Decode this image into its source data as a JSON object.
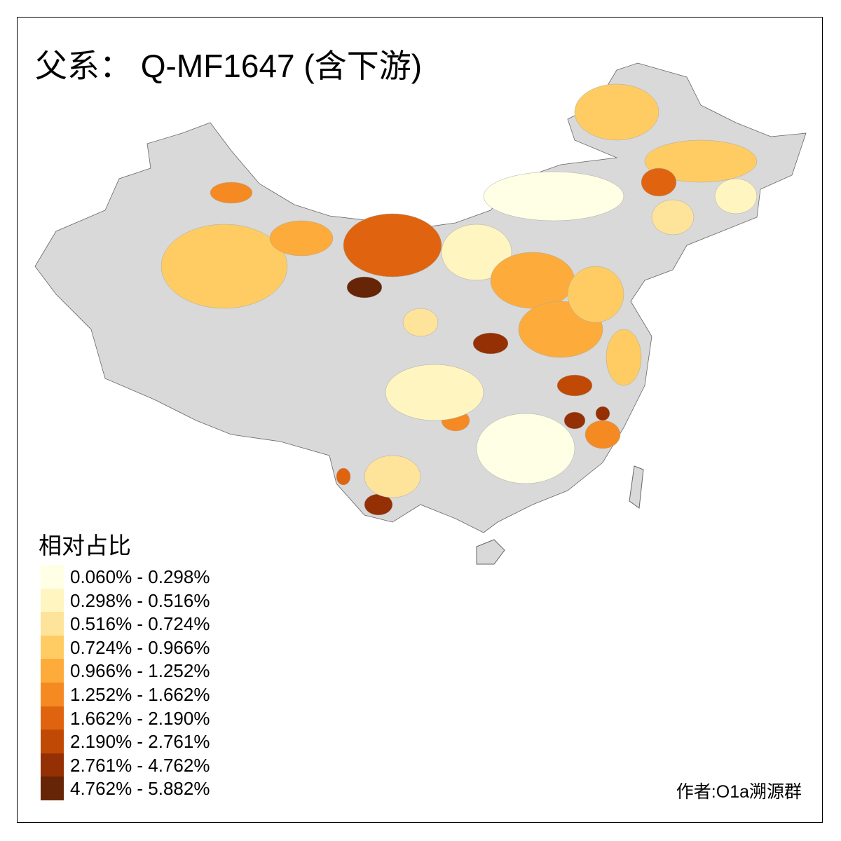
{
  "title": "父系： Q-MF1647 (含下游)",
  "legend": {
    "title": "相对占比",
    "items": [
      {
        "label": "0.060% - 0.298%",
        "color": "#FFFFE5"
      },
      {
        "label": "0.298% - 0.516%",
        "color": "#FFF5C0"
      },
      {
        "label": "0.516% - 0.724%",
        "color": "#FEE39A"
      },
      {
        "label": "0.724% - 0.966%",
        "color": "#FECC63"
      },
      {
        "label": "0.966% - 1.252%",
        "color": "#FDAB3A"
      },
      {
        "label": "1.252% - 1.662%",
        "color": "#F58A22"
      },
      {
        "label": "1.662% - 2.190%",
        "color": "#E0640F"
      },
      {
        "label": "2.190% - 2.761%",
        "color": "#C04A05"
      },
      {
        "label": "2.761% - 4.762%",
        "color": "#952F04"
      },
      {
        "label": "4.762% - 5.882%",
        "color": "#662506"
      }
    ],
    "no_data_color": "#D9D9D9"
  },
  "credit": "作者:O1a溯源群"
}
